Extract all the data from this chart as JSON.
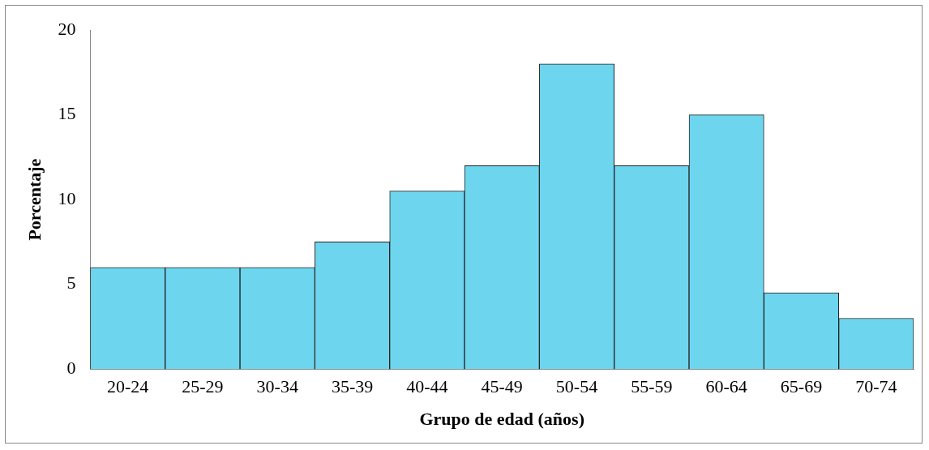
{
  "chart_data": {
    "type": "bar",
    "xlabel": "Grupo de edad (años)",
    "ylabel": "Porcentaje",
    "categories": [
      "20-24",
      "25-29",
      "30-34",
      "35-39",
      "40-44",
      "45-49",
      "50-54",
      "55-59",
      "60-64",
      "65-69",
      "70-74"
    ],
    "values": [
      6,
      6,
      6,
      7.5,
      10.5,
      12,
      18,
      12,
      15,
      4.5,
      3
    ],
    "color": "#6dd6ee",
    "ylim": [
      0,
      20
    ],
    "yticks": [
      0,
      5,
      10,
      15,
      20
    ]
  }
}
